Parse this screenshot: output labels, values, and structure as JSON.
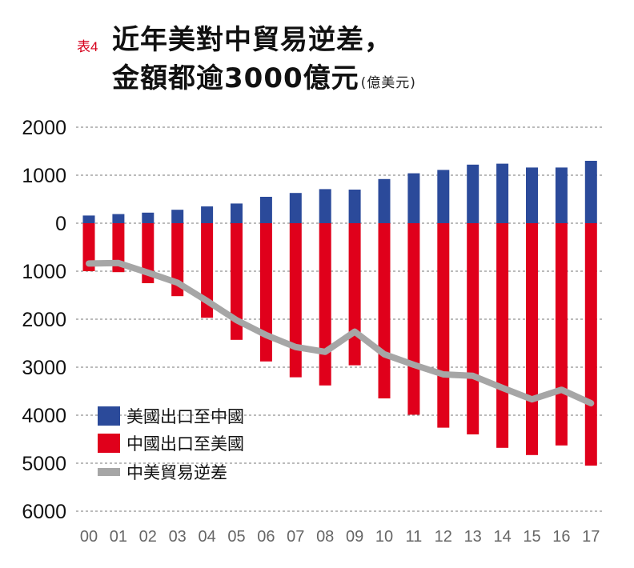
{
  "header": {
    "tag": "表4",
    "title_line1": "近年美對中貿易逆差，",
    "title_line2": "金額都逾3000億元",
    "unit": "(億美元)"
  },
  "colors": {
    "us_exports": "#2b4a9a",
    "china_exports": "#e0001b",
    "deficit": "#a6a6a6",
    "grid": "#777777"
  },
  "chart_data": {
    "type": "bar",
    "title": "近年美對中貿易逆差，金額都逾3000億元",
    "unit": "(億美元)",
    "categories": [
      "00",
      "01",
      "02",
      "03",
      "04",
      "05",
      "06",
      "07",
      "08",
      "09",
      "10",
      "11",
      "12",
      "13",
      "14",
      "15",
      "16",
      "17"
    ],
    "y_ticks": [
      2000,
      1000,
      0,
      -1000,
      -2000,
      -3000,
      -4000,
      -5000,
      -6000
    ],
    "y_tick_labels": [
      "2000",
      "1000",
      "0",
      "1000",
      "2000",
      "3000",
      "4000",
      "5000",
      "6000"
    ],
    "ylim": [
      -6000,
      2000
    ],
    "grid": true,
    "legend_position": "bottom-left",
    "series": [
      {
        "name": "美國出口至中國",
        "type": "bar",
        "color": "#2b4a9a",
        "values": [
          160,
          190,
          220,
          280,
          350,
          410,
          550,
          630,
          710,
          700,
          920,
          1040,
          1110,
          1220,
          1240,
          1160,
          1160,
          1300
        ]
      },
      {
        "name": "中國出口至美國",
        "type": "bar",
        "color": "#e0001b",
        "values": [
          -1000,
          -1020,
          -1250,
          -1520,
          -1970,
          -2430,
          -2880,
          -3210,
          -3380,
          -2960,
          -3650,
          -3990,
          -4260,
          -4400,
          -4680,
          -4830,
          -4630,
          -5050
        ]
      },
      {
        "name": "中美貿易逆差",
        "type": "line",
        "color": "#a6a6a6",
        "values": [
          -840,
          -830,
          -1030,
          -1240,
          -1620,
          -2020,
          -2330,
          -2580,
          -2680,
          -2260,
          -2730,
          -2950,
          -3150,
          -3180,
          -3430,
          -3670,
          -3470,
          -3750
        ]
      }
    ]
  }
}
